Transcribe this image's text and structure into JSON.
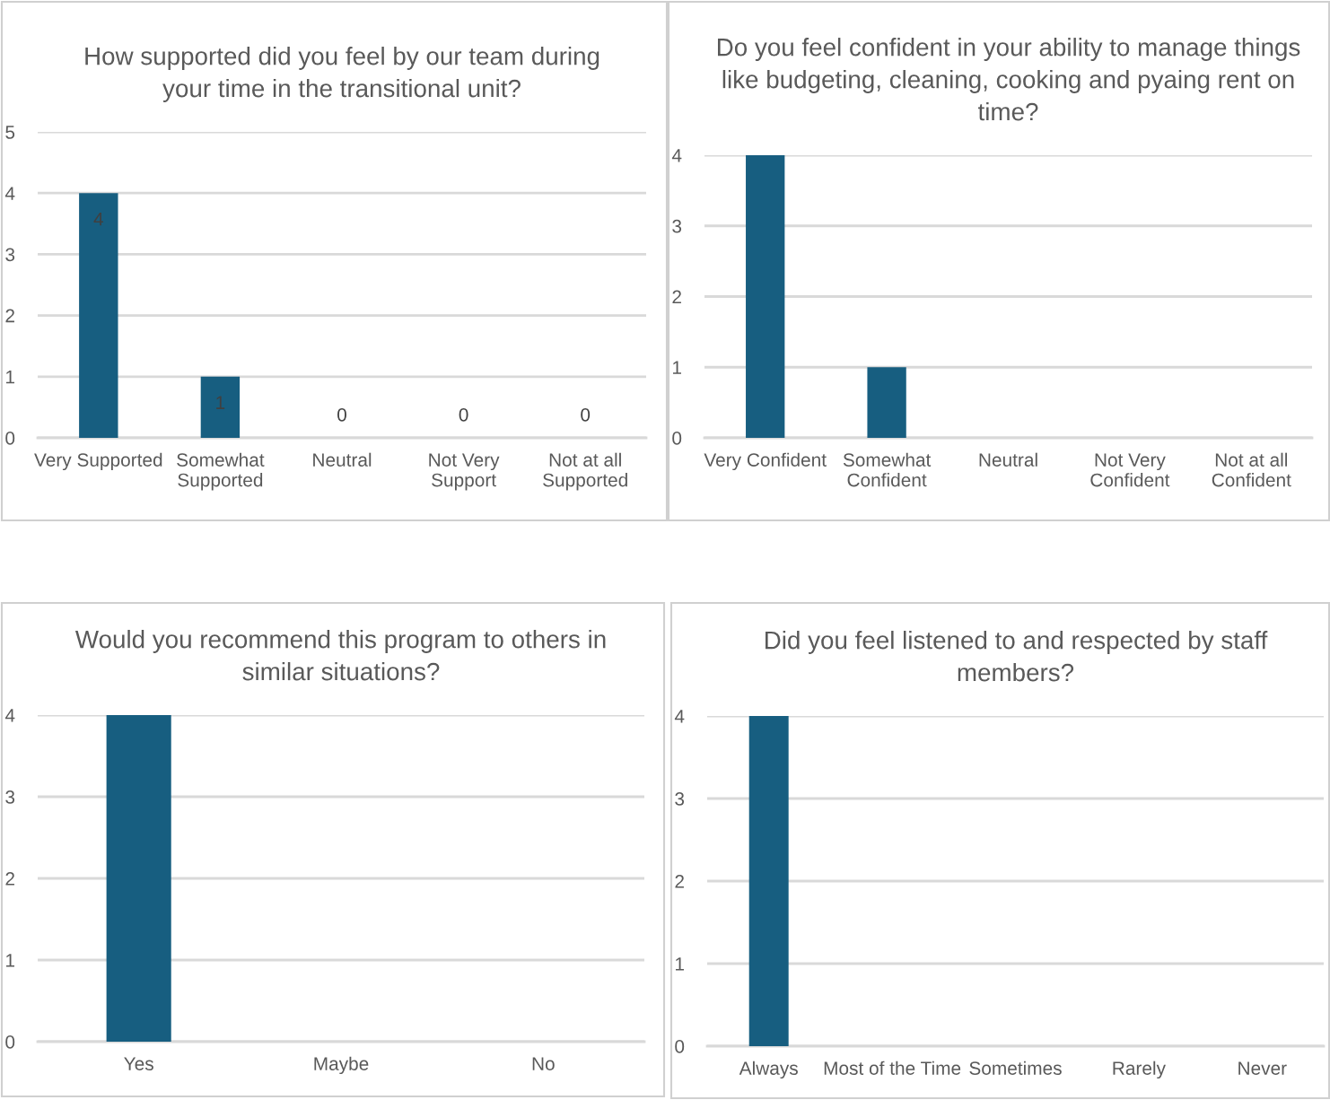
{
  "chart_data": [
    {
      "type": "bar",
      "title": "How supported did you feel by our team during\nyour time in the transitional unit?",
      "categories": [
        "Very Supported",
        "Somewhat\nSupported",
        "Neutral",
        "Not Very\nSupport",
        "Not at all\nSupported"
      ],
      "values": [
        4,
        1,
        0,
        0,
        0
      ],
      "color": "#175e80",
      "ylim": [
        0,
        5
      ],
      "yticks": [
        0,
        1,
        2,
        3,
        4,
        5
      ],
      "grid": "y",
      "data_labels": true
    },
    {
      "type": "bar",
      "title": "Do you feel confident in your ability to manage things\nlike budgeting, cleaning, cooking and pyaing rent on\ntime?",
      "categories": [
        "Very Confident",
        "Somewhat\nConfident",
        "Neutral",
        "Not Very\nConfident",
        "Not at all\nConfident"
      ],
      "values": [
        4,
        1,
        0,
        0,
        0
      ],
      "color": "#175e80",
      "ylim": [
        0,
        4
      ],
      "yticks": [
        0,
        1,
        2,
        3,
        4
      ],
      "grid": "y"
    },
    {
      "type": "bar",
      "title": "Would you recommend this program to others in\nsimilar situations?",
      "categories": [
        "Yes",
        "Maybe",
        "No"
      ],
      "values": [
        4,
        0,
        0
      ],
      "color": "#175e80",
      "ylim": [
        0,
        4
      ],
      "yticks": [
        0,
        1,
        2,
        3,
        4
      ],
      "grid": "y"
    },
    {
      "type": "bar",
      "title": "Did you feel listened to and respected by staff\nmembers?",
      "categories": [
        "Always",
        "Most of the Time",
        "Sometimes",
        "Rarely",
        "Never"
      ],
      "values": [
        4,
        0,
        0,
        0,
        0
      ],
      "color": "#175e80",
      "ylim": [
        0,
        4
      ],
      "yticks": [
        0,
        1,
        2,
        3,
        4
      ],
      "grid": "y"
    }
  ]
}
